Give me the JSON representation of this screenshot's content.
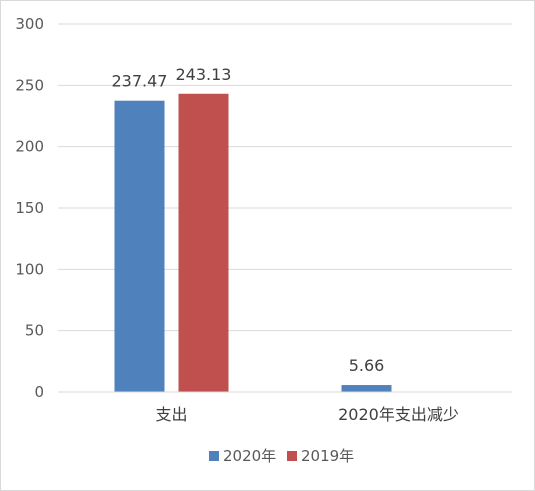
{
  "chart_data": {
    "type": "bar",
    "categories": [
      "支出",
      "2020年支出减少"
    ],
    "series": [
      {
        "name": "2020年",
        "values": [
          237.47,
          5.66
        ],
        "labels": [
          "237.47",
          "5.66"
        ],
        "color": "#4f81bd"
      },
      {
        "name": "2019年",
        "values": [
          243.13,
          null
        ],
        "labels": [
          "243.13",
          ""
        ],
        "color": "#c0504d"
      }
    ],
    "yticks": [
      0,
      50,
      100,
      150,
      200,
      250,
      300
    ],
    "ylim": [
      0,
      300
    ],
    "grid": true,
    "legend_position": "bottom"
  }
}
